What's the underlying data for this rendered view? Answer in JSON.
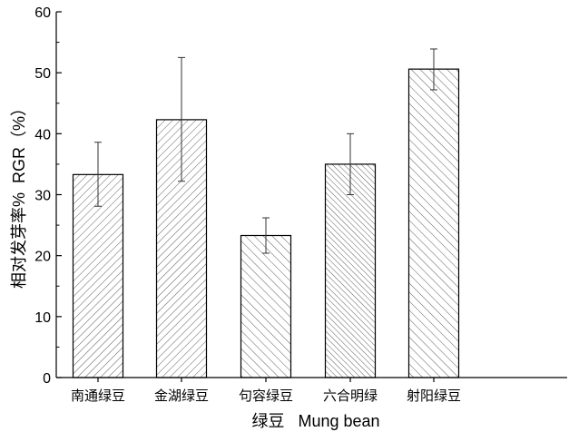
{
  "chart_data": {
    "type": "bar",
    "title": "",
    "xlabel": "绿豆   Mung bean",
    "ylabel": "相对发芽率%  RGR（%）",
    "ylim": [
      0,
      60
    ],
    "yticks": [
      "0",
      "10",
      "20",
      "30",
      "40",
      "50",
      "60"
    ],
    "categories": [
      "南通绿豆",
      "金湖绿豆",
      "句容绿豆",
      "六合明绿",
      "射阳绿豆"
    ],
    "values": [
      33.3,
      42.3,
      23.3,
      35.0,
      50.6
    ],
    "error_high": [
      38.6,
      52.5,
      26.2,
      40.0,
      53.9
    ],
    "error_low": [
      28.1,
      32.2,
      20.4,
      30.0,
      47.2
    ],
    "hatches": [
      "fwd",
      "fwd",
      "back",
      "back-dense",
      "back"
    ],
    "grid": false,
    "colors": {
      "bar_fill": "#ffffff",
      "bar_stroke": "#000000",
      "hatch": "#333333"
    }
  }
}
